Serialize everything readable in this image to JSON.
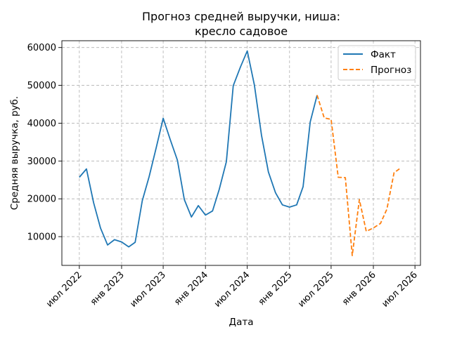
{
  "chart_data": {
    "type": "line",
    "title": [
      "Прогноз средней выручки, ниша:",
      "кресло садовое"
    ],
    "xlabel": "Дата",
    "ylabel": "Средняя выручка, руб.",
    "xlim": [
      "2022-04-16",
      "2026-07-25"
    ],
    "ylim": [
      2400,
      61800
    ],
    "grid": true,
    "legend": "top-right",
    "x_ticks": [
      {
        "date": "2022-07-01",
        "label": "июл 2022"
      },
      {
        "date": "2023-01-01",
        "label": "янв 2023"
      },
      {
        "date": "2023-07-01",
        "label": "июл 2023"
      },
      {
        "date": "2024-01-01",
        "label": "янв 2024"
      },
      {
        "date": "2024-07-01",
        "label": "июл 2024"
      },
      {
        "date": "2025-01-01",
        "label": "янв 2025"
      },
      {
        "date": "2025-07-01",
        "label": "июл 2025"
      },
      {
        "date": "2026-01-01",
        "label": "янв 2026"
      },
      {
        "date": "2026-07-01",
        "label": "июл 2026"
      }
    ],
    "y_ticks": [
      {
        "value": 10000,
        "label": "10000"
      },
      {
        "value": 20000,
        "label": "20000"
      },
      {
        "value": 30000,
        "label": "30000"
      },
      {
        "value": 40000,
        "label": "40000"
      },
      {
        "value": 50000,
        "label": "50000"
      },
      {
        "value": 60000,
        "label": "60000"
      }
    ],
    "series": [
      {
        "name": "Факт",
        "color": "#1f77b4",
        "style": "solid",
        "points": [
          {
            "x": "2022-07-01",
            "y": 25700
          },
          {
            "x": "2022-08-01",
            "y": 27900
          },
          {
            "x": "2022-09-01",
            "y": 19000
          },
          {
            "x": "2022-10-01",
            "y": 12300
          },
          {
            "x": "2022-11-01",
            "y": 7800
          },
          {
            "x": "2022-12-01",
            "y": 9200
          },
          {
            "x": "2023-01-01",
            "y": 8600
          },
          {
            "x": "2023-02-01",
            "y": 7300
          },
          {
            "x": "2023-03-01",
            "y": 8500
          },
          {
            "x": "2023-04-01",
            "y": 19500
          },
          {
            "x": "2023-05-01",
            "y": 25900
          },
          {
            "x": "2023-06-01",
            "y": 33600
          },
          {
            "x": "2023-07-01",
            "y": 41300
          },
          {
            "x": "2023-08-01",
            "y": 35600
          },
          {
            "x": "2023-09-01",
            "y": 30200
          },
          {
            "x": "2023-10-01",
            "y": 19800
          },
          {
            "x": "2023-11-01",
            "y": 15200
          },
          {
            "x": "2023-12-01",
            "y": 18200
          },
          {
            "x": "2024-01-01",
            "y": 15700
          },
          {
            "x": "2024-02-01",
            "y": 16800
          },
          {
            "x": "2024-03-01",
            "y": 22500
          },
          {
            "x": "2024-04-01",
            "y": 29800
          },
          {
            "x": "2024-05-01",
            "y": 49900
          },
          {
            "x": "2024-06-01",
            "y": 54800
          },
          {
            "x": "2024-07-01",
            "y": 59100
          },
          {
            "x": "2024-08-01",
            "y": 50100
          },
          {
            "x": "2024-09-01",
            "y": 36800
          },
          {
            "x": "2024-10-01",
            "y": 27100
          },
          {
            "x": "2024-11-01",
            "y": 21600
          },
          {
            "x": "2024-12-01",
            "y": 18400
          },
          {
            "x": "2025-01-01",
            "y": 17800
          },
          {
            "x": "2025-02-01",
            "y": 18400
          },
          {
            "x": "2025-03-01",
            "y": 23200
          },
          {
            "x": "2025-04-01",
            "y": 40300
          },
          {
            "x": "2025-05-01",
            "y": 47400
          }
        ]
      },
      {
        "name": "Прогноз",
        "color": "#ff7f0e",
        "style": "dashed",
        "points": [
          {
            "x": "2025-05-01",
            "y": 47400
          },
          {
            "x": "2025-06-01",
            "y": 41400
          },
          {
            "x": "2025-07-01",
            "y": 41000
          },
          {
            "x": "2025-08-01",
            "y": 25700
          },
          {
            "x": "2025-09-01",
            "y": 25600
          },
          {
            "x": "2025-10-01",
            "y": 5000
          },
          {
            "x": "2025-11-01",
            "y": 19800
          },
          {
            "x": "2025-12-01",
            "y": 11400
          },
          {
            "x": "2026-01-01",
            "y": 12300
          },
          {
            "x": "2026-02-01",
            "y": 13500
          },
          {
            "x": "2026-03-01",
            "y": 17300
          },
          {
            "x": "2026-04-01",
            "y": 26900
          },
          {
            "x": "2026-05-01",
            "y": 28200
          }
        ]
      }
    ]
  }
}
